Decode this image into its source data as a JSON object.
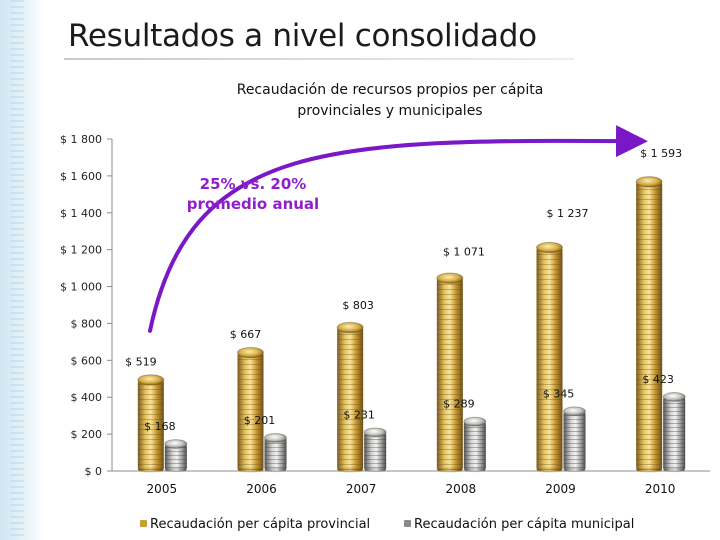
{
  "slide": {
    "title": "Resultados a nivel consolidado"
  },
  "chart_data": {
    "type": "bar",
    "title_line1": "Recaudación de recursos propios per cápita",
    "title_line2": "provinciales y municipales",
    "categories": [
      "2005",
      "2006",
      "2007",
      "2008",
      "2009",
      "2010"
    ],
    "series": [
      {
        "name": "Recaudación per cápita provincial",
        "values": [
          519,
          667,
          803,
          1071,
          1237,
          1593
        ],
        "labels": [
          "$ 519",
          "$ 667",
          "$ 803",
          "$ 1 071",
          "$ 1 237",
          "$ 1 593"
        ],
        "color": "#c8a032"
      },
      {
        "name": "Recaudación per cápita municipal",
        "values": [
          168,
          201,
          231,
          289,
          345,
          423
        ],
        "labels": [
          "$ 168",
          "$ 201",
          "$ 231",
          "$ 289",
          "$ 345",
          "$ 423"
        ],
        "color": "#8a8a8a"
      }
    ],
    "y_ticks": [
      0,
      200,
      400,
      600,
      800,
      1000,
      1200,
      1400,
      1600,
      1800
    ],
    "y_tick_labels": [
      "$ 0",
      "$ 200",
      "$ 400",
      "$ 600",
      "$ 800",
      "$ 1 000",
      "$ 1 200",
      "$ 1 400",
      "$ 1 600",
      "$ 1 800"
    ],
    "ylim": [
      0,
      1800
    ],
    "xlabel": "",
    "ylabel": "",
    "annotation": {
      "line1": "25% vs. 20%",
      "line2": "promedio anual",
      "color": "#7a18c8"
    },
    "legend_position": "bottom"
  }
}
